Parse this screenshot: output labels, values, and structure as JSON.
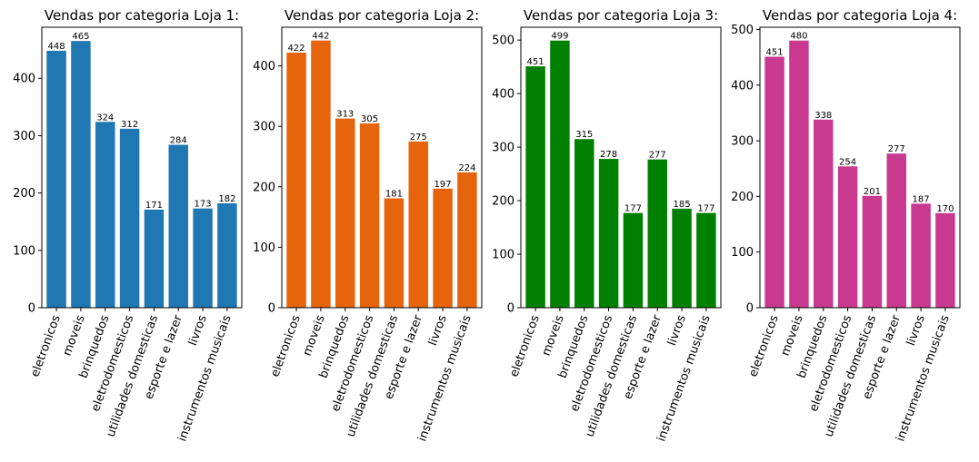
{
  "chart_data": [
    {
      "type": "bar",
      "title": "Vendas por categoria Loja 1:",
      "categories": [
        "eletronicos",
        "moveis",
        "brinquedos",
        "eletrodomesticos",
        "utilidades domesticas",
        "esporte e lazer",
        "livros",
        "instrumentos musicais"
      ],
      "values": [
        448,
        465,
        324,
        312,
        171,
        284,
        173,
        182
      ],
      "color": "#1f77b4",
      "ylim": [
        0,
        489
      ],
      "yticks": [
        0,
        100,
        200,
        300,
        400
      ]
    },
    {
      "type": "bar",
      "title": "Vendas por categoria Loja 2:",
      "categories": [
        "eletronicos",
        "moveis",
        "brinquedos",
        "eletrodomesticos",
        "utilidades domesticas",
        "esporte e lazer",
        "livros",
        "instrumentos musicais"
      ],
      "values": [
        422,
        442,
        313,
        305,
        181,
        275,
        197,
        224
      ],
      "color": "#e5640c",
      "ylim": [
        0,
        464
      ],
      "yticks": [
        0,
        100,
        200,
        300,
        400
      ]
    },
    {
      "type": "bar",
      "title": "Vendas por categoria Loja 3:",
      "categories": [
        "eletronicos",
        "moveis",
        "brinquedos",
        "eletrodomesticos",
        "utilidades domesticas",
        "esporte e lazer",
        "livros",
        "instrumentos musicais"
      ],
      "values": [
        451,
        499,
        315,
        278,
        177,
        277,
        185,
        177
      ],
      "color": "#008000",
      "ylim": [
        0,
        524
      ],
      "yticks": [
        0,
        100,
        200,
        300,
        400,
        500
      ]
    },
    {
      "type": "bar",
      "title": "Vendas por categoria Loja 4:",
      "categories": [
        "eletronicos",
        "moveis",
        "brinquedos",
        "eletrodomesticos",
        "utilidades domesticas",
        "esporte e lazer",
        "livros",
        "instrumentos musicais"
      ],
      "values": [
        451,
        480,
        338,
        254,
        201,
        277,
        187,
        170
      ],
      "color": "#c8398f",
      "ylim": [
        0,
        504
      ],
      "yticks": [
        0,
        100,
        200,
        300,
        400,
        500
      ]
    }
  ]
}
